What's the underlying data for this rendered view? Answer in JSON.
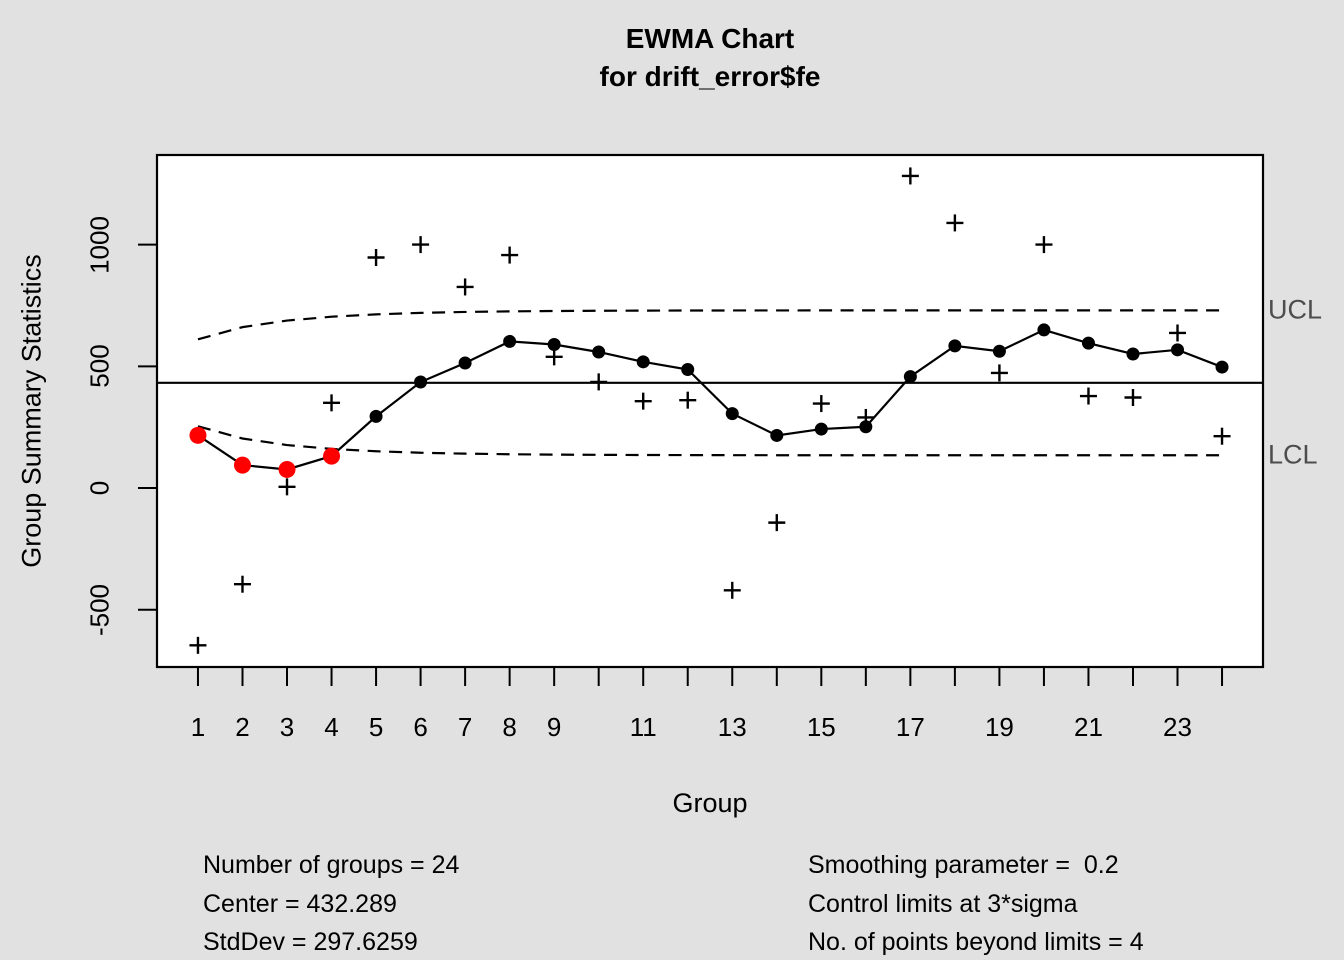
{
  "title": {
    "line1": "EWMA Chart",
    "line2": "for drift_error$fe"
  },
  "axes": {
    "x_label": "Group",
    "y_label": "Group Summary Statistics"
  },
  "limit_labels": {
    "ucl": "UCL",
    "lcl": "LCL"
  },
  "stats": {
    "left": [
      "Number of groups = 24",
      "Center = 432.289",
      "StdDev = 297.6259"
    ],
    "right": [
      "Smoothing parameter =  0.2",
      "Control limits at 3*sigma",
      "No. of points beyond limits = 4"
    ]
  },
  "colors": {
    "figure_background": "#e1e1e1",
    "plot_background": "#ffffff",
    "line": "#000000",
    "beyond_limit_point": "#ff0000",
    "limit_label_text": "#4d4d4d"
  },
  "chart_data": {
    "type": "line",
    "subtype": "ewma-control-chart",
    "title": "EWMA Chart for drift_error$fe",
    "xlabel": "Group",
    "ylabel": "Group Summary Statistics",
    "x": [
      1,
      2,
      3,
      4,
      5,
      6,
      7,
      8,
      9,
      10,
      11,
      12,
      13,
      14,
      15,
      16,
      17,
      18,
      19,
      20,
      21,
      22,
      23,
      24
    ],
    "series": [
      {
        "name": "group summary statistics",
        "marker": "plus",
        "line": "none",
        "color": "#000000",
        "values": [
          -646,
          -395,
          5,
          350,
          947,
          1000,
          826,
          957,
          539,
          436,
          357,
          361,
          -420,
          -142,
          347,
          290,
          1282,
          1089,
          473,
          1000,
          378,
          372,
          637,
          213
        ]
      },
      {
        "name": "EWMA",
        "marker": "circle",
        "line": "solid",
        "color": "#000000",
        "values": [
          216.6,
          94.3,
          76.4,
          131.2,
          294.3,
          435.5,
          513.6,
          602.3,
          589.6,
          558.9,
          518.5,
          487.0,
          305.6,
          216.1,
          242.3,
          251.8,
          457.9,
          584.1,
          561.9,
          649.5,
          595.2,
          550.6,
          567.8,
          496.9
        ]
      },
      {
        "name": "UCL",
        "marker": "none",
        "line": "dashed",
        "color": "#000000",
        "values": [
          610.9,
          661.0,
          687.9,
          703.8,
          713.5,
          719.5,
          723.3,
          725.7,
          727.2,
          728.2,
          728.8,
          729.2,
          729.5,
          729.6,
          729.7,
          729.8,
          729.8,
          729.9,
          729.9,
          729.9,
          729.9,
          729.9,
          729.9,
          729.9
        ]
      },
      {
        "name": "LCL",
        "marker": "none",
        "line": "dashed",
        "color": "#000000",
        "values": [
          253.7,
          203.6,
          176.6,
          160.8,
          151.1,
          145.1,
          141.3,
          138.9,
          137.4,
          136.4,
          135.8,
          135.4,
          135.1,
          134.9,
          134.8,
          134.8,
          134.7,
          134.7,
          134.7,
          134.7,
          134.7,
          134.7,
          134.7,
          134.7
        ]
      }
    ],
    "center": 432.289,
    "stddev": 297.6259,
    "smoothing_parameter": 0.2,
    "sigma_multiplier": 3,
    "number_of_groups": 24,
    "points_beyond_limits_groups": [
      1,
      2,
      3,
      4
    ],
    "ylim": [
      -735,
      1368
    ],
    "xlim": [
      0.08,
      24.92
    ],
    "y_ticks": [
      -500,
      0,
      500,
      1000
    ],
    "x_ticks": [
      1,
      2,
      3,
      4,
      5,
      6,
      7,
      8,
      9,
      10,
      11,
      12,
      13,
      14,
      15,
      16,
      17,
      18,
      19,
      20,
      21,
      22,
      23,
      24
    ],
    "x_tick_labels": [
      1,
      2,
      3,
      4,
      5,
      6,
      7,
      8,
      9,
      11,
      13,
      15,
      17,
      19,
      21,
      23
    ],
    "grid": false,
    "legend": false
  }
}
